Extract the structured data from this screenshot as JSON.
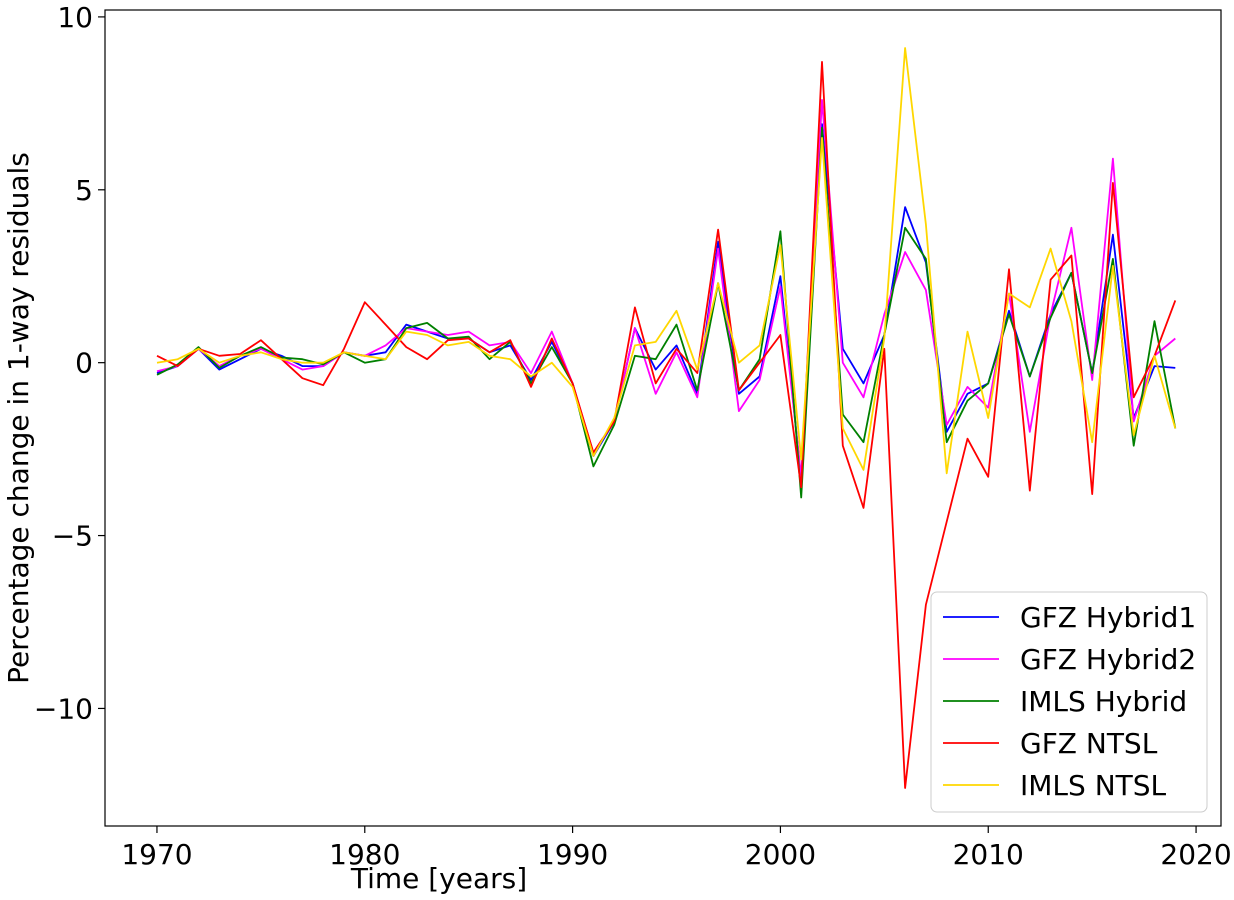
{
  "chart_data": {
    "type": "line",
    "title": "",
    "xlabel": "Time [years]",
    "ylabel": "Percentage change in 1-way residuals",
    "xlim": [
      1967.5,
      2021.2
    ],
    "ylim": [
      -13.4,
      10.2
    ],
    "x_ticks": [
      1970,
      1980,
      1990,
      2000,
      2010,
      2020
    ],
    "y_ticks": [
      -10,
      -5,
      0,
      5,
      10
    ],
    "y_tick_labels": [
      "−10",
      "−5",
      "0",
      "5",
      "10"
    ],
    "grid": false,
    "legend_position": "bottom-right",
    "x": [
      1970,
      1971,
      1972,
      1973,
      1974,
      1975,
      1976,
      1977,
      1978,
      1979,
      1980,
      1981,
      1982,
      1983,
      1984,
      1985,
      1986,
      1987,
      1988,
      1989,
      1990,
      1991,
      1992,
      1993,
      1994,
      1995,
      1996,
      1997,
      1998,
      1999,
      2000,
      2001,
      2002,
      2003,
      2004,
      2005,
      2006,
      2007,
      2008,
      2009,
      2010,
      2011,
      2012,
      2013,
      2014,
      2015,
      2016,
      2017,
      2018,
      2019
    ],
    "series": [
      {
        "name": "GFZ Hybrid1",
        "color": "#0000ff",
        "values": [
          -0.3,
          -0.1,
          0.4,
          -0.2,
          0.1,
          0.4,
          0.2,
          -0.1,
          -0.1,
          0.3,
          0.2,
          0.3,
          1.1,
          0.9,
          0.7,
          0.7,
          0.3,
          0.5,
          -0.5,
          0.6,
          -0.6,
          -2.7,
          -1.7,
          1.0,
          -0.2,
          0.5,
          -0.9,
          3.5,
          -0.9,
          -0.4,
          2.5,
          -3.4,
          6.9,
          0.4,
          -0.6,
          0.8,
          4.5,
          2.9,
          -2.0,
          -0.9,
          -0.6,
          1.5,
          -0.4,
          1.4,
          2.6,
          -0.3,
          3.7,
          -1.6,
          -0.1,
          -0.15
        ]
      },
      {
        "name": "GFZ Hybrid2",
        "color": "#ff00ff",
        "values": [
          -0.25,
          -0.1,
          0.4,
          -0.1,
          0.2,
          0.4,
          0.1,
          -0.2,
          -0.1,
          0.3,
          0.2,
          0.5,
          1.0,
          0.9,
          0.8,
          0.9,
          0.5,
          0.6,
          -0.3,
          0.9,
          -0.6,
          -2.6,
          -1.7,
          1.0,
          -0.9,
          0.3,
          -1.0,
          3.3,
          -1.4,
          -0.5,
          2.2,
          -3.3,
          7.6,
          0.0,
          -1.0,
          1.4,
          3.2,
          2.1,
          -1.8,
          -0.7,
          -1.3,
          2.0,
          -2.0,
          1.4,
          3.9,
          -0.5,
          5.9,
          -1.7,
          0.2,
          0.7
        ]
      },
      {
        "name": "IMLS Hybrid",
        "color": "#008000",
        "values": [
          -0.35,
          -0.05,
          0.45,
          -0.15,
          0.2,
          0.45,
          0.15,
          0.1,
          -0.05,
          0.3,
          0.0,
          0.1,
          1.0,
          1.15,
          0.7,
          0.75,
          0.1,
          0.6,
          -0.6,
          0.45,
          -0.6,
          -3.0,
          -1.8,
          0.2,
          0.1,
          1.1,
          -0.8,
          2.3,
          -0.8,
          0.1,
          3.8,
          -3.9,
          6.8,
          -1.5,
          -2.3,
          0.8,
          3.9,
          3.0,
          -2.3,
          -1.1,
          -0.6,
          1.4,
          -0.4,
          1.3,
          2.6,
          -0.3,
          3.0,
          -2.4,
          1.2,
          -1.9
        ]
      },
      {
        "name": "GFZ NTSL",
        "color": "#ff0000",
        "values": [
          0.2,
          -0.1,
          0.4,
          0.2,
          0.25,
          0.65,
          0.1,
          -0.45,
          -0.65,
          0.4,
          1.75,
          1.1,
          0.45,
          0.1,
          0.65,
          0.7,
          0.3,
          0.65,
          -0.7,
          0.7,
          -0.6,
          -2.6,
          -1.7,
          1.6,
          -0.6,
          0.4,
          -0.3,
          3.85,
          -0.8,
          0.0,
          0.8,
          -3.6,
          8.7,
          -2.4,
          -4.2,
          0.4,
          -12.3,
          -7.0,
          -4.6,
          -2.2,
          -3.3,
          2.7,
          -3.7,
          2.4,
          3.1,
          -3.8,
          5.2,
          -1.0,
          0.2,
          1.8
        ]
      },
      {
        "name": "IMLS NTSL",
        "color": "#ffd700",
        "values": [
          0.0,
          0.1,
          0.4,
          0.0,
          0.2,
          0.3,
          0.1,
          0.0,
          0.0,
          0.3,
          0.2,
          0.1,
          0.9,
          0.8,
          0.5,
          0.6,
          0.2,
          0.1,
          -0.4,
          0.0,
          -0.7,
          -2.7,
          -1.6,
          0.5,
          0.6,
          1.5,
          -0.2,
          2.3,
          0.0,
          0.5,
          3.4,
          -2.8,
          6.5,
          -1.9,
          -3.1,
          0.7,
          9.1,
          4.0,
          -3.2,
          0.9,
          -1.6,
          2.0,
          1.6,
          3.3,
          1.2,
          -2.3,
          2.8,
          -2.1,
          0.2,
          -1.9
        ]
      }
    ]
  }
}
